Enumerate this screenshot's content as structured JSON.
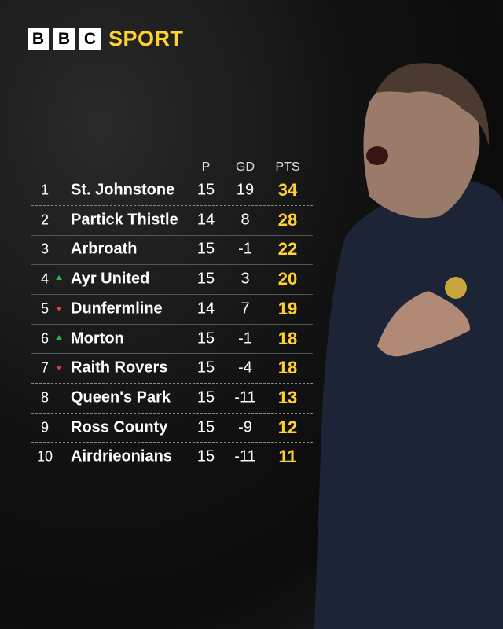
{
  "header": {
    "logo": [
      "B",
      "B",
      "C"
    ],
    "section": "SPORT"
  },
  "table": {
    "columns": [
      "P",
      "GD",
      "PTS"
    ],
    "rows": [
      [
        1,
        "St. Johnstone",
        15,
        19,
        34
      ],
      [
        2,
        "Partick Thistle",
        14,
        8,
        28
      ],
      [
        3,
        "Arbroath",
        15,
        -1,
        22
      ],
      [
        4,
        "Ayr United",
        15,
        3,
        20
      ],
      [
        5,
        "Dunfermline",
        14,
        7,
        19
      ],
      [
        6,
        "Morton",
        15,
        -1,
        18
      ],
      [
        7,
        "Raith Rovers",
        15,
        -4,
        18
      ],
      [
        8,
        "Queen's Park",
        15,
        -11,
        13
      ],
      [
        9,
        "Ross County",
        15,
        -9,
        12
      ],
      [
        10,
        "Airdrieonians",
        15,
        -11,
        11
      ]
    ]
  }
}
